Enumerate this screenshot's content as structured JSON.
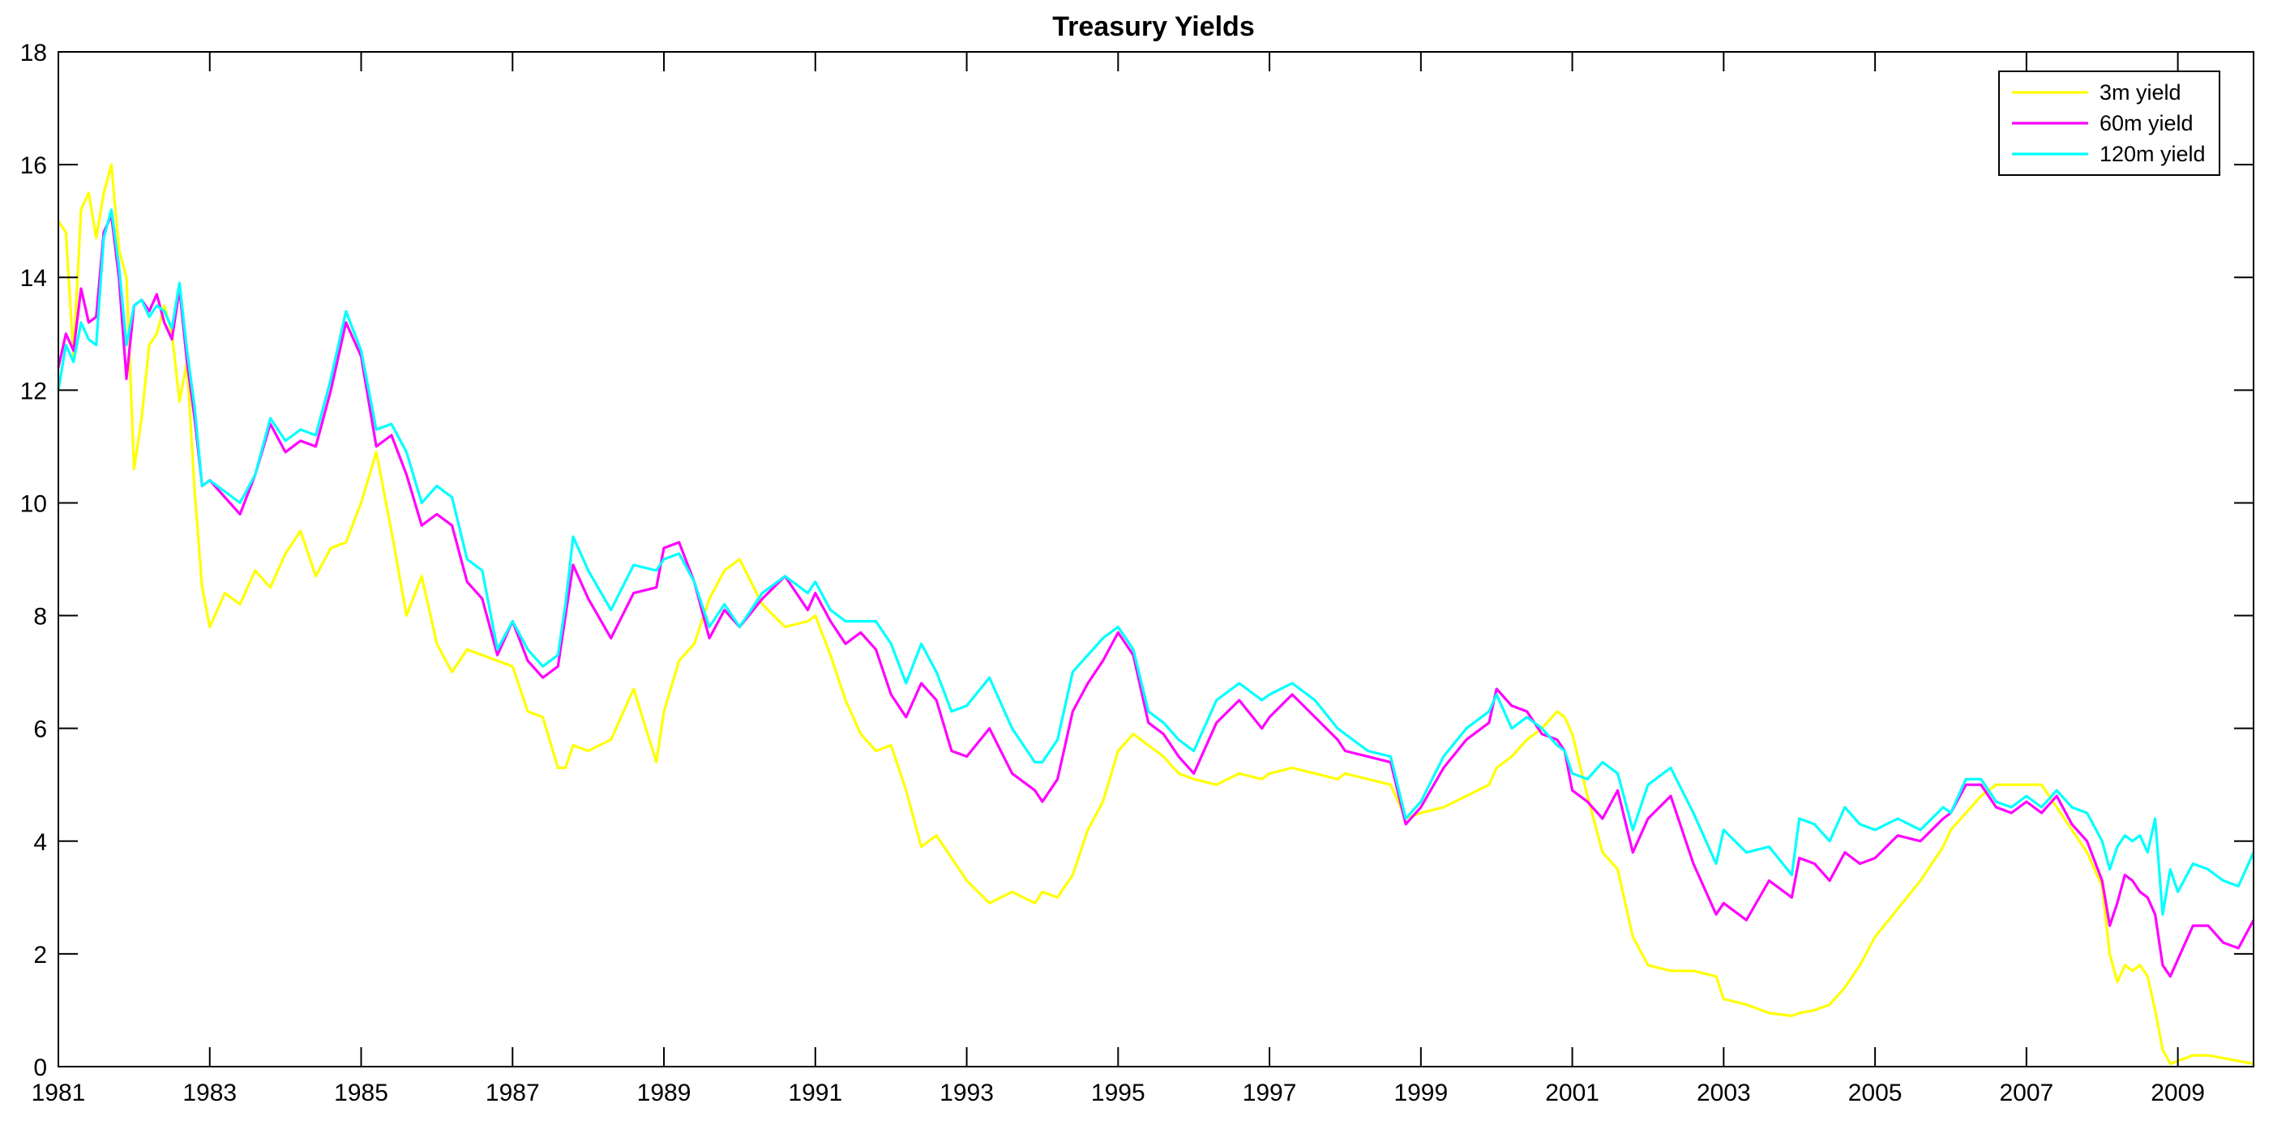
{
  "chart_data": {
    "type": "line",
    "title": "Treasury Yields",
    "xlabel": "",
    "ylabel": "",
    "xlim": [
      1981,
      2010
    ],
    "ylim": [
      0,
      18
    ],
    "x_ticks": [
      1981,
      1983,
      1985,
      1987,
      1989,
      1991,
      1993,
      1995,
      1997,
      1999,
      2001,
      2003,
      2005,
      2007,
      2009
    ],
    "x_tick_labels": [
      "1981",
      "1983",
      "1985",
      "1987",
      "1989",
      "1991",
      "1993",
      "1995",
      "1997",
      "1999",
      "2001",
      "2003",
      "2005",
      "2007",
      "2009"
    ],
    "y_ticks": [
      0,
      2,
      4,
      6,
      8,
      10,
      12,
      14,
      16,
      18
    ],
    "y_tick_labels": [
      "0",
      "2",
      "4",
      "6",
      "8",
      "10",
      "12",
      "14",
      "16",
      "18"
    ],
    "grid": false,
    "legend_position": "top-right",
    "background": "#ffffff",
    "series": [
      {
        "name": "3m yield",
        "color": "#ffff00",
        "x": [
          1981.0,
          1981.1,
          1981.2,
          1981.3,
          1981.4,
          1981.5,
          1981.6,
          1981.7,
          1981.8,
          1981.9,
          1982.0,
          1982.1,
          1982.2,
          1982.3,
          1982.4,
          1982.5,
          1982.6,
          1982.7,
          1982.8,
          1982.9,
          1983.0,
          1983.2,
          1983.4,
          1983.6,
          1983.8,
          1984.0,
          1984.2,
          1984.4,
          1984.6,
          1984.8,
          1985.0,
          1985.2,
          1985.4,
          1985.6,
          1985.8,
          1986.0,
          1986.2,
          1986.4,
          1986.6,
          1986.8,
          1987.0,
          1987.2,
          1987.4,
          1987.6,
          1987.7,
          1987.8,
          1988.0,
          1988.3,
          1988.6,
          1988.9,
          1989.0,
          1989.2,
          1989.4,
          1989.6,
          1989.8,
          1990.0,
          1990.3,
          1990.6,
          1990.9,
          1991.0,
          1991.2,
          1991.4,
          1991.6,
          1991.8,
          1992.0,
          1992.2,
          1992.4,
          1992.6,
          1992.8,
          1993.0,
          1993.3,
          1993.6,
          1993.9,
          1994.0,
          1994.2,
          1994.4,
          1994.6,
          1994.8,
          1995.0,
          1995.2,
          1995.4,
          1995.6,
          1995.8,
          1996.0,
          1996.3,
          1996.6,
          1996.9,
          1997.0,
          1997.3,
          1997.6,
          1997.9,
          1998.0,
          1998.3,
          1998.6,
          1998.8,
          1999.0,
          1999.3,
          1999.6,
          1999.9,
          2000.0,
          2000.2,
          2000.4,
          2000.6,
          2000.8,
          2000.9,
          2001.0,
          2001.2,
          2001.4,
          2001.6,
          2001.8,
          2002.0,
          2002.3,
          2002.6,
          2002.9,
          2003.0,
          2003.3,
          2003.6,
          2003.9,
          2004.0,
          2004.2,
          2004.4,
          2004.6,
          2004.8,
          2005.0,
          2005.3,
          2005.6,
          2005.9,
          2006.0,
          2006.2,
          2006.4,
          2006.6,
          2006.8,
          2007.0,
          2007.2,
          2007.4,
          2007.6,
          2007.8,
          2008.0,
          2008.1,
          2008.2,
          2008.3,
          2008.4,
          2008.5,
          2008.6,
          2008.7,
          2008.8,
          2008.9,
          2009.0,
          2009.2,
          2009.4,
          2009.6,
          2009.8,
          2010.0
        ],
        "values": [
          15.0,
          14.8,
          12.6,
          15.2,
          15.5,
          14.7,
          15.5,
          16.0,
          14.5,
          14.0,
          10.6,
          11.5,
          12.8,
          13.0,
          13.5,
          13.0,
          11.8,
          12.5,
          10.2,
          8.5,
          7.8,
          8.4,
          8.2,
          8.8,
          8.5,
          9.1,
          9.5,
          8.7,
          9.2,
          9.3,
          10.0,
          10.9,
          9.5,
          8.0,
          8.7,
          7.5,
          7.0,
          7.4,
          7.3,
          7.2,
          7.1,
          6.3,
          6.2,
          5.3,
          5.3,
          5.7,
          5.6,
          5.8,
          6.7,
          5.4,
          6.3,
          7.2,
          7.5,
          8.3,
          8.8,
          9.0,
          8.2,
          7.8,
          7.9,
          8.0,
          7.3,
          6.5,
          5.9,
          5.6,
          5.7,
          4.9,
          3.9,
          4.1,
          3.7,
          3.3,
          2.9,
          3.1,
          2.9,
          3.1,
          3.0,
          3.4,
          4.2,
          4.7,
          5.6,
          5.9,
          5.7,
          5.5,
          5.2,
          5.1,
          5.0,
          5.2,
          5.1,
          5.2,
          5.3,
          5.2,
          5.1,
          5.2,
          5.1,
          5.0,
          4.4,
          4.5,
          4.6,
          4.8,
          5.0,
          5.3,
          5.5,
          5.8,
          6.0,
          6.3,
          6.2,
          5.9,
          4.8,
          3.8,
          3.5,
          2.3,
          1.8,
          1.7,
          1.7,
          1.6,
          1.2,
          1.1,
          0.95,
          0.9,
          0.95,
          1.0,
          1.1,
          1.4,
          1.8,
          2.3,
          2.8,
          3.3,
          3.9,
          4.2,
          4.5,
          4.8,
          5.0,
          5.0,
          5.0,
          5.0,
          4.6,
          4.2,
          3.8,
          3.2,
          2.0,
          1.5,
          1.8,
          1.7,
          1.8,
          1.6,
          1.0,
          0.3,
          0.05,
          0.1,
          0.2,
          0.2,
          0.15,
          0.1,
          0.05
        ]
      },
      {
        "name": "60m yield",
        "color": "#ff00ff",
        "x": [
          1981.0,
          1981.1,
          1981.2,
          1981.3,
          1981.4,
          1981.5,
          1981.6,
          1981.7,
          1981.8,
          1981.9,
          1982.0,
          1982.1,
          1982.2,
          1982.3,
          1982.4,
          1982.5,
          1982.6,
          1982.7,
          1982.8,
          1982.9,
          1983.0,
          1983.2,
          1983.4,
          1983.6,
          1983.8,
          1984.0,
          1984.2,
          1984.4,
          1984.6,
          1984.8,
          1985.0,
          1985.2,
          1985.4,
          1985.6,
          1985.8,
          1986.0,
          1986.2,
          1986.4,
          1986.6,
          1986.8,
          1987.0,
          1987.2,
          1987.4,
          1987.6,
          1987.7,
          1987.8,
          1988.0,
          1988.3,
          1988.6,
          1988.9,
          1989.0,
          1989.2,
          1989.4,
          1989.6,
          1989.8,
          1990.0,
          1990.3,
          1990.6,
          1990.9,
          1991.0,
          1991.2,
          1991.4,
          1991.6,
          1991.8,
          1992.0,
          1992.2,
          1992.4,
          1992.6,
          1992.8,
          1993.0,
          1993.3,
          1993.6,
          1993.9,
          1994.0,
          1994.2,
          1994.4,
          1994.6,
          1994.8,
          1995.0,
          1995.2,
          1995.4,
          1995.6,
          1995.8,
          1996.0,
          1996.3,
          1996.6,
          1996.9,
          1997.0,
          1997.3,
          1997.6,
          1997.9,
          1998.0,
          1998.3,
          1998.6,
          1998.8,
          1999.0,
          1999.3,
          1999.6,
          1999.9,
          2000.0,
          2000.2,
          2000.4,
          2000.6,
          2000.8,
          2000.9,
          2001.0,
          2001.2,
          2001.4,
          2001.6,
          2001.8,
          2002.0,
          2002.3,
          2002.6,
          2002.9,
          2003.0,
          2003.3,
          2003.6,
          2003.9,
          2004.0,
          2004.2,
          2004.4,
          2004.6,
          2004.8,
          2005.0,
          2005.3,
          2005.6,
          2005.9,
          2006.0,
          2006.2,
          2006.4,
          2006.6,
          2006.8,
          2007.0,
          2007.2,
          2007.4,
          2007.6,
          2007.8,
          2008.0,
          2008.1,
          2008.2,
          2008.3,
          2008.4,
          2008.5,
          2008.6,
          2008.7,
          2008.8,
          2008.9,
          2009.0,
          2009.2,
          2009.4,
          2009.6,
          2009.8,
          2010.0
        ],
        "values": [
          12.4,
          13.0,
          12.7,
          13.8,
          13.2,
          13.3,
          14.8,
          15.1,
          14.0,
          12.2,
          13.5,
          13.6,
          13.4,
          13.7,
          13.2,
          12.9,
          13.8,
          12.5,
          11.5,
          10.3,
          10.4,
          10.1,
          9.8,
          10.5,
          11.4,
          10.9,
          11.1,
          11.0,
          12.0,
          13.2,
          12.6,
          11.0,
          11.2,
          10.5,
          9.6,
          9.8,
          9.6,
          8.6,
          8.3,
          7.3,
          7.9,
          7.2,
          6.9,
          7.1,
          8.0,
          8.9,
          8.3,
          7.6,
          8.4,
          8.5,
          9.2,
          9.3,
          8.6,
          7.6,
          8.1,
          7.8,
          8.3,
          8.7,
          8.1,
          8.4,
          7.9,
          7.5,
          7.7,
          7.4,
          6.6,
          6.2,
          6.8,
          6.5,
          5.6,
          5.5,
          6.0,
          5.2,
          4.9,
          4.7,
          5.1,
          6.3,
          6.8,
          7.2,
          7.7,
          7.3,
          6.1,
          5.9,
          5.5,
          5.2,
          6.1,
          6.5,
          6.0,
          6.2,
          6.6,
          6.2,
          5.8,
          5.6,
          5.5,
          5.4,
          4.3,
          4.6,
          5.3,
          5.8,
          6.1,
          6.7,
          6.4,
          6.3,
          5.9,
          5.8,
          5.6,
          4.9,
          4.7,
          4.4,
          4.9,
          3.8,
          4.4,
          4.8,
          3.6,
          2.7,
          2.9,
          2.6,
          3.3,
          3.0,
          3.7,
          3.6,
          3.3,
          3.8,
          3.6,
          3.7,
          4.1,
          4.0,
          4.4,
          4.5,
          5.0,
          5.0,
          4.6,
          4.5,
          4.7,
          4.5,
          4.8,
          4.3,
          4.0,
          3.3,
          2.5,
          2.9,
          3.4,
          3.3,
          3.1,
          3.0,
          2.7,
          1.8,
          1.6,
          1.9,
          2.5,
          2.5,
          2.2,
          2.1,
          2.6
        ]
      },
      {
        "name": "120m yield",
        "color": "#00ffff",
        "x": [
          1981.0,
          1981.1,
          1981.2,
          1981.3,
          1981.4,
          1981.5,
          1981.6,
          1981.7,
          1981.8,
          1981.9,
          1982.0,
          1982.1,
          1982.2,
          1982.3,
          1982.4,
          1982.5,
          1982.6,
          1982.7,
          1982.8,
          1982.9,
          1983.0,
          1983.2,
          1983.4,
          1983.6,
          1983.8,
          1984.0,
          1984.2,
          1984.4,
          1984.6,
          1984.8,
          1985.0,
          1985.2,
          1985.4,
          1985.6,
          1985.8,
          1986.0,
          1986.2,
          1986.4,
          1986.6,
          1986.8,
          1987.0,
          1987.2,
          1987.4,
          1987.6,
          1987.7,
          1987.8,
          1988.0,
          1988.3,
          1988.6,
          1988.9,
          1989.0,
          1989.2,
          1989.4,
          1989.6,
          1989.8,
          1990.0,
          1990.3,
          1990.6,
          1990.9,
          1991.0,
          1991.2,
          1991.4,
          1991.6,
          1991.8,
          1992.0,
          1992.2,
          1992.4,
          1992.6,
          1992.8,
          1993.0,
          1993.3,
          1993.6,
          1993.9,
          1994.0,
          1994.2,
          1994.4,
          1994.6,
          1994.8,
          1995.0,
          1995.2,
          1995.4,
          1995.6,
          1995.8,
          1996.0,
          1996.3,
          1996.6,
          1996.9,
          1997.0,
          1997.3,
          1997.6,
          1997.9,
          1998.0,
          1998.3,
          1998.6,
          1998.8,
          1999.0,
          1999.3,
          1999.6,
          1999.9,
          2000.0,
          2000.2,
          2000.4,
          2000.6,
          2000.8,
          2000.9,
          2001.0,
          2001.2,
          2001.4,
          2001.6,
          2001.8,
          2002.0,
          2002.3,
          2002.6,
          2002.9,
          2003.0,
          2003.3,
          2003.6,
          2003.9,
          2004.0,
          2004.2,
          2004.4,
          2004.6,
          2004.8,
          2005.0,
          2005.3,
          2005.6,
          2005.9,
          2006.0,
          2006.2,
          2006.4,
          2006.6,
          2006.8,
          2007.0,
          2007.2,
          2007.4,
          2007.6,
          2007.8,
          2008.0,
          2008.1,
          2008.2,
          2008.3,
          2008.4,
          2008.5,
          2008.6,
          2008.7,
          2008.8,
          2008.9,
          2009.0,
          2009.2,
          2009.4,
          2009.6,
          2009.8,
          2010.0
        ],
        "values": [
          12.0,
          12.8,
          12.5,
          13.2,
          12.9,
          12.8,
          14.7,
          15.2,
          14.2,
          12.8,
          13.5,
          13.6,
          13.3,
          13.5,
          13.4,
          13.1,
          13.9,
          12.7,
          11.7,
          10.3,
          10.4,
          10.2,
          10.0,
          10.5,
          11.5,
          11.1,
          11.3,
          11.2,
          12.2,
          13.4,
          12.7,
          11.3,
          11.4,
          10.9,
          10.0,
          10.3,
          10.1,
          9.0,
          8.8,
          7.4,
          7.9,
          7.4,
          7.1,
          7.3,
          8.2,
          9.4,
          8.8,
          8.1,
          8.9,
          8.8,
          9.0,
          9.1,
          8.6,
          7.8,
          8.2,
          7.8,
          8.4,
          8.7,
          8.4,
          8.6,
          8.1,
          7.9,
          7.9,
          7.9,
          7.5,
          6.8,
          7.5,
          7.0,
          6.3,
          6.4,
          6.9,
          6.0,
          5.4,
          5.4,
          5.8,
          7.0,
          7.3,
          7.6,
          7.8,
          7.4,
          6.3,
          6.1,
          5.8,
          5.6,
          6.5,
          6.8,
          6.5,
          6.6,
          6.8,
          6.5,
          6.0,
          5.9,
          5.6,
          5.5,
          4.4,
          4.7,
          5.5,
          6.0,
          6.3,
          6.6,
          6.0,
          6.2,
          6.0,
          5.7,
          5.6,
          5.2,
          5.1,
          5.4,
          5.2,
          4.2,
          5.0,
          5.3,
          4.5,
          3.6,
          4.2,
          3.8,
          3.9,
          3.4,
          4.4,
          4.3,
          4.0,
          4.6,
          4.3,
          4.2,
          4.4,
          4.2,
          4.6,
          4.5,
          5.1,
          5.1,
          4.7,
          4.6,
          4.8,
          4.6,
          4.9,
          4.6,
          4.5,
          4.0,
          3.5,
          3.9,
          4.1,
          4.0,
          4.1,
          3.8,
          4.4,
          2.7,
          3.5,
          3.1,
          3.6,
          3.5,
          3.3,
          3.2,
          3.8
        ]
      }
    ]
  }
}
